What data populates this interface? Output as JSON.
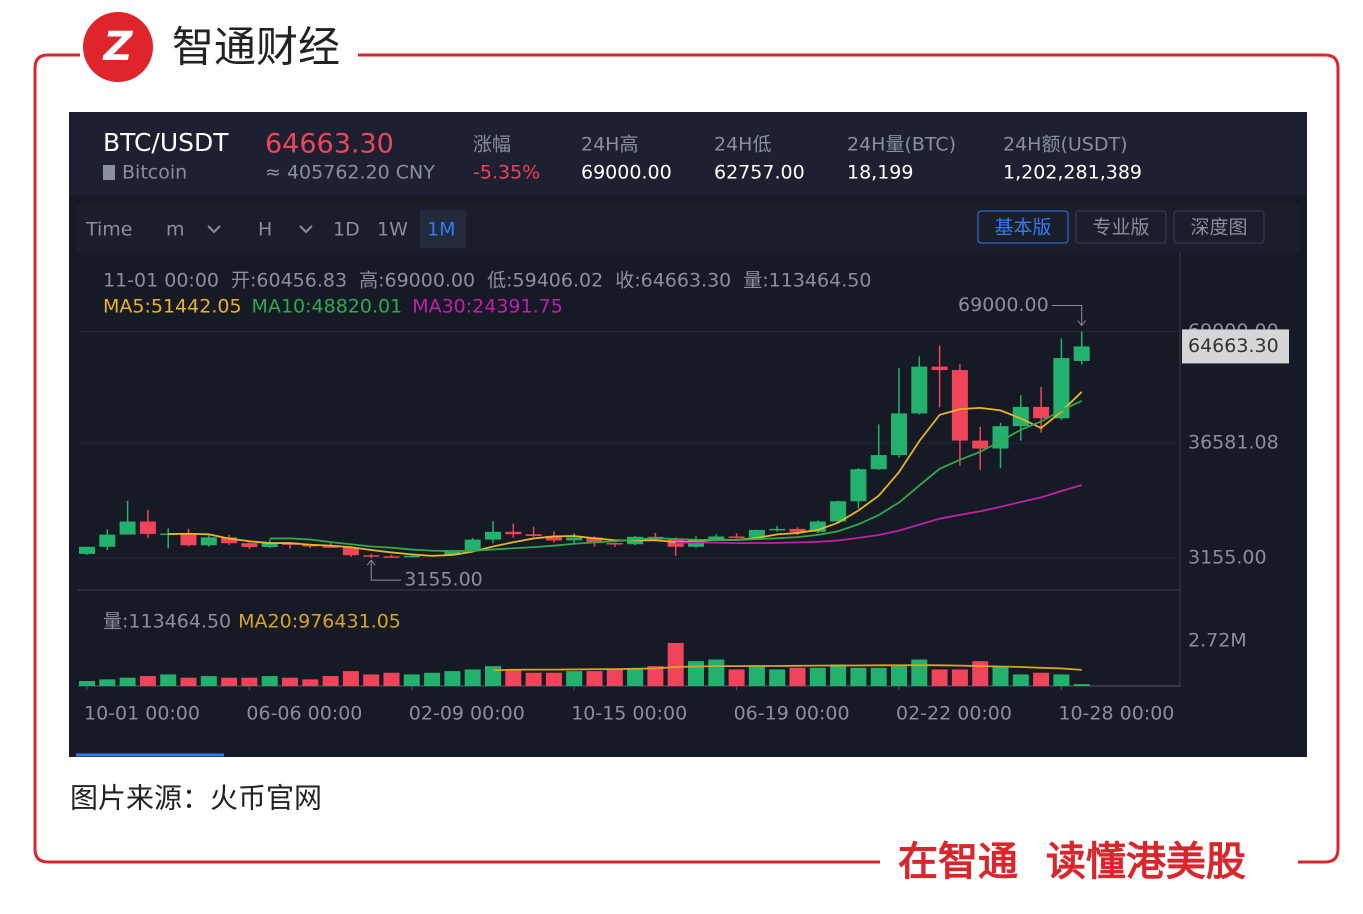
{
  "brand": "智通财经",
  "header": {
    "pair": "BTC/USDT",
    "name": "Bitcoin",
    "price": "64663.30",
    "cny": "≈ 405762.20 CNY",
    "stats": [
      {
        "label": "涨幅",
        "value": "-5.35%"
      },
      {
        "label": "24H高",
        "value": "69000.00"
      },
      {
        "label": "24H低",
        "value": "62757.00"
      },
      {
        "label": "24H量(BTC)",
        "value": "18,199"
      },
      {
        "label": "24H额(USDT)",
        "value": "1,202,281,389"
      }
    ]
  },
  "toolbar": {
    "intervals": [
      "Time",
      "m",
      "H",
      "1D",
      "1W",
      "1M"
    ],
    "views": [
      "基本版",
      "专业版",
      "深度图"
    ]
  },
  "chart_data": {
    "type": "candlestick",
    "info": [
      "11-01 00:00",
      "开:60456.83",
      "高:69000.00",
      "低:59406.02",
      "收:64663.30",
      "量:113464.50"
    ],
    "categories": [
      "10-01 00:00",
      null,
      null,
      null,
      null,
      null,
      null,
      null,
      "06-06 00:00",
      null,
      null,
      null,
      null,
      null,
      null,
      null,
      "02-09 00:00",
      null,
      null,
      null,
      null,
      null,
      null,
      null,
      "10-15 00:00",
      null,
      null,
      null,
      null,
      null,
      null,
      null,
      "06-19 00:00",
      null,
      null,
      null,
      null,
      null,
      null,
      null,
      "02-22 00:00",
      null,
      null,
      null,
      null,
      null,
      null,
      null,
      "10-28 00:00",
      null
    ],
    "open": [
      4400,
      6450,
      10000,
      13800,
      10200,
      10300,
      6900,
      9200,
      7500,
      6400,
      7700,
      7000,
      6600,
      6300,
      4000,
      3700,
      3450,
      3850,
      4100,
      5350,
      8550,
      10800,
      10100,
      9600,
      8300,
      9150,
      7550,
      7200,
      9350,
      8550,
      6450,
      8650,
      9450,
      9150,
      11350,
      11650,
      10800,
      13800,
      19700,
      29000,
      33100,
      45200,
      58800,
      57800,
      37300,
      35000,
      41500,
      47100,
      43800,
      60456.83
    ],
    "high": [
      6470,
      11500,
      19800,
      17200,
      11800,
      11700,
      9800,
      10000,
      7800,
      8500,
      7800,
      7400,
      7500,
      6600,
      4400,
      4100,
      4200,
      4150,
      5600,
      9000,
      13900,
      13200,
      12300,
      10900,
      10400,
      9500,
      7700,
      9600,
      10500,
      9200,
      9500,
      10100,
      10400,
      11450,
      12500,
      12100,
      14100,
      19900,
      29300,
      42000,
      58400,
      61800,
      64900,
      59500,
      41300,
      42500,
      50500,
      52900,
      67000,
      69000
    ],
    "low": [
      4100,
      5500,
      10000,
      9000,
      6000,
      6600,
      6500,
      7000,
      5800,
      6100,
      5900,
      6100,
      6200,
      3500,
      3155,
      3350,
      3400,
      3750,
      4050,
      5300,
      7500,
      9100,
      9400,
      7700,
      7300,
      6500,
      6430,
      6850,
      8400,
      3850,
      6150,
      8100,
      8900,
      8950,
      10900,
      9850,
      10400,
      13200,
      17600,
      28800,
      32300,
      44900,
      47000,
      30000,
      28800,
      29300,
      37300,
      39600,
      43300,
      59406.02
    ],
    "close": [
      6450,
      10000,
      13800,
      10200,
      10300,
      6900,
      9200,
      7500,
      6400,
      7700,
      7000,
      6600,
      6300,
      4000,
      3700,
      3450,
      3850,
      4100,
      5350,
      8550,
      10800,
      10100,
      9600,
      8300,
      9150,
      7550,
      7200,
      9350,
      8550,
      6450,
      8650,
      9450,
      9150,
      11350,
      11650,
      10800,
      13800,
      19700,
      29000,
      33100,
      45200,
      58800,
      57800,
      37300,
      35000,
      41500,
      47100,
      43800,
      61300,
      64663.3
    ],
    "up_color": "#23b26d",
    "down_color": "#f0445a",
    "ylim": [
      -6100,
      92100
    ],
    "yticks": [
      {
        "value": 3155,
        "label": "3155.00"
      },
      36581.08,
      {
        "value": 69000,
        "label": "69000.00"
      }
    ],
    "grid": true,
    "current_price": {
      "value": 64663.3,
      "label": "64663.30"
    },
    "max_marker": {
      "value": 69000,
      "label": "69000.00",
      "index": 49
    },
    "min_marker": {
      "value": 3155,
      "label": "3155.00",
      "index": 14
    },
    "ma_lines": [
      {
        "label": "MA5:51442.05",
        "color": "#e8b526",
        "values": [
          null,
          null,
          null,
          null,
          10150,
          10240,
          10080,
          8820,
          8060,
          7540,
          7560,
          7040,
          6800,
          6320,
          5520,
          4810,
          4260,
          3820,
          4090,
          5060,
          6530,
          7780,
          8880,
          9470,
          9590,
          8940,
          8360,
          8310,
          8360,
          7820,
          8040,
          8490,
          8450,
          9010,
          10050,
          10480,
          11350,
          13460,
          16990,
          21280,
          28160,
          37160,
          44780,
          46440,
          46820,
          46080,
          43740,
          40940,
          45740,
          51442.05
        ]
      },
      {
        "label": "MA10:48820.01",
        "color": "#2fa84f",
        "values": [
          null,
          null,
          null,
          null,
          null,
          null,
          null,
          null,
          null,
          8850,
          8900,
          8560,
          7810,
          7190,
          6530,
          6190,
          5650,
          5310,
          5210,
          5290,
          5670,
          6020,
          6350,
          6780,
          7330,
          7740,
          8070,
          8600,
          8920,
          8710,
          8490,
          8430,
          8380,
          8690,
          8940,
          9260,
          9920,
          10960,
          13000,
          15670,
          19320,
          24260,
          29120,
          31720,
          34050,
          37120,
          40450,
          42860,
          46090,
          48820.01
        ]
      },
      {
        "label": "MA30:24391.75",
        "color": "#c21fae",
        "values": [
          null,
          null,
          null,
          null,
          null,
          null,
          null,
          null,
          null,
          null,
          null,
          null,
          null,
          null,
          null,
          null,
          null,
          null,
          null,
          null,
          null,
          null,
          null,
          null,
          null,
          null,
          null,
          null,
          null,
          7610,
          7690,
          7670,
          7510,
          7550,
          7600,
          7730,
          7880,
          8290,
          9040,
          9890,
          11160,
          12900,
          14620,
          15730,
          16770,
          18040,
          19480,
          20800,
          22670,
          24391.75
        ]
      }
    ],
    "volume_label": "量:113464.50",
    "volume": [
      300000,
      400000,
      500000,
      600000,
      700000,
      500000,
      600000,
      500000,
      500000,
      600000,
      500000,
      400000,
      600000,
      900000,
      700000,
      800000,
      700000,
      800000,
      900000,
      1000000,
      1200000,
      1000000,
      800000,
      800000,
      900000,
      900000,
      1000000,
      1000000,
      1200000,
      2600000,
      1500000,
      1600000,
      1000000,
      1200000,
      1000000,
      1100000,
      1100000,
      1300000,
      1100000,
      1100000,
      1200000,
      1600000,
      1000000,
      1000000,
      1500000,
      1200000,
      700000,
      800000,
      700000,
      113464.5
    ],
    "volume_ma": {
      "label": "MA20:976431.05",
      "color": "#d8a521",
      "values": [
        null,
        null,
        null,
        null,
        null,
        null,
        null,
        null,
        null,
        null,
        null,
        null,
        null,
        null,
        null,
        null,
        null,
        null,
        null,
        null,
        950000,
        980000,
        990000,
        990000,
        1000000,
        1010000,
        1020000,
        1040000,
        1060000,
        1150000,
        1180000,
        1200000,
        1200000,
        1210000,
        1210000,
        1220000,
        1230000,
        1240000,
        1240000,
        1250000,
        1250000,
        1260000,
        1250000,
        1230000,
        1200000,
        1180000,
        1150000,
        1100000,
        1060000,
        976431.05
      ]
    },
    "volume_ylim": [
      0,
      5800000
    ],
    "volume_yticks": [
      {
        "value": 2720000,
        "label": "2.72M"
      }
    ]
  },
  "source": "图片来源：火币官网",
  "slogan": "在智通  读懂港美股"
}
